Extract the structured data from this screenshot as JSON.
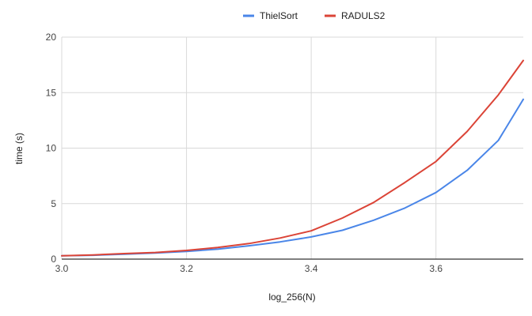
{
  "chart_data": {
    "type": "line",
    "title": "",
    "xlabel": "log_256(N)",
    "ylabel": "time (s)",
    "xlim": [
      3.0,
      3.74
    ],
    "ylim": [
      0,
      20
    ],
    "x_ticks": [
      "3.0",
      "3.2",
      "3.4",
      "3.6"
    ],
    "x_tick_values": [
      3.0,
      3.2,
      3.4,
      3.6
    ],
    "y_ticks": [
      "0",
      "5",
      "10",
      "15",
      "20"
    ],
    "y_tick_values": [
      0,
      5,
      10,
      15,
      20
    ],
    "grid": true,
    "legend_position": "top-center",
    "series": [
      {
        "name": "ThielSort",
        "color": "#4a86e8",
        "x": [
          3.0,
          3.05,
          3.1,
          3.15,
          3.2,
          3.25,
          3.3,
          3.35,
          3.4,
          3.45,
          3.5,
          3.55,
          3.6,
          3.65,
          3.7,
          3.74
        ],
        "y": [
          0.3,
          0.35,
          0.45,
          0.55,
          0.7,
          0.9,
          1.2,
          1.55,
          2.0,
          2.6,
          3.5,
          4.6,
          6.0,
          8.0,
          10.7,
          14.4
        ]
      },
      {
        "name": "RADULS2",
        "color": "#db4437",
        "x": [
          3.0,
          3.05,
          3.1,
          3.15,
          3.2,
          3.25,
          3.3,
          3.35,
          3.4,
          3.45,
          3.5,
          3.55,
          3.6,
          3.65,
          3.7,
          3.74
        ],
        "y": [
          0.3,
          0.38,
          0.5,
          0.6,
          0.78,
          1.05,
          1.4,
          1.9,
          2.55,
          3.7,
          5.1,
          6.9,
          8.8,
          11.5,
          14.8,
          17.9
        ]
      }
    ]
  }
}
